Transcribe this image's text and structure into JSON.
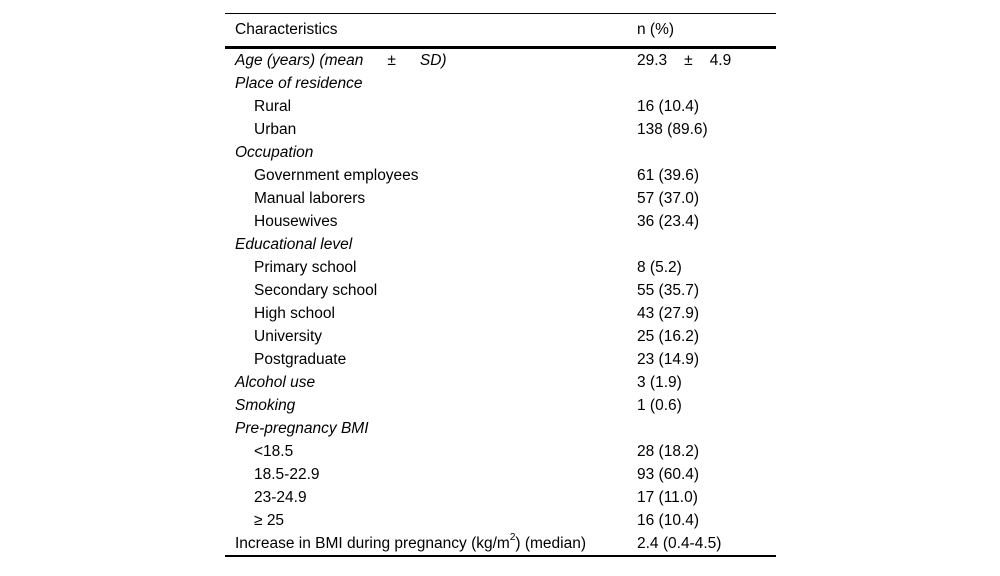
{
  "table": {
    "colors": {
      "text": "#000000",
      "rule": "#000000",
      "background": "#ffffff"
    },
    "columns": {
      "characteristics": "Characteristics",
      "n_percent": "n (%)"
    },
    "rows": [
      {
        "label_tabs": [
          "Age (years) (mean",
          "±",
          "SD)"
        ],
        "italic": true,
        "indent": false,
        "value_tabs": [
          "29.3",
          "±",
          "4.9"
        ]
      },
      {
        "label": "Place of residence",
        "italic": true,
        "indent": false,
        "value": ""
      },
      {
        "label": "Rural",
        "italic": false,
        "indent": true,
        "value": "16 (10.4)"
      },
      {
        "label": "Urban",
        "italic": false,
        "indent": true,
        "value": "138 (89.6)"
      },
      {
        "label": "Occupation",
        "italic": true,
        "indent": false,
        "value": ""
      },
      {
        "label": "Government employees",
        "italic": false,
        "indent": true,
        "value": "61 (39.6)"
      },
      {
        "label": "Manual laborers",
        "italic": false,
        "indent": true,
        "value": "57 (37.0)"
      },
      {
        "label": "Housewives",
        "italic": false,
        "indent": true,
        "value": "36 (23.4)"
      },
      {
        "label": "Educational level",
        "italic": true,
        "indent": false,
        "value": ""
      },
      {
        "label": "Primary school",
        "italic": false,
        "indent": true,
        "value": "8 (5.2)"
      },
      {
        "label": "Secondary school",
        "italic": false,
        "indent": true,
        "value": "55 (35.7)"
      },
      {
        "label": "High school",
        "italic": false,
        "indent": true,
        "value": "43 (27.9)"
      },
      {
        "label": "University",
        "italic": false,
        "indent": true,
        "value": "25 (16.2)"
      },
      {
        "label": "Postgraduate",
        "italic": false,
        "indent": true,
        "value": "23 (14.9)"
      },
      {
        "label": "Alcohol use",
        "italic": true,
        "indent": false,
        "value": "3 (1.9)"
      },
      {
        "label": "Smoking",
        "italic": true,
        "indent": false,
        "value": "1 (0.6)"
      },
      {
        "label": "Pre-pregnancy BMI",
        "italic": true,
        "indent": false,
        "value": ""
      },
      {
        "label": "<18.5",
        "italic": false,
        "indent": true,
        "value": "28 (18.2)"
      },
      {
        "label": "18.5-22.9",
        "italic": false,
        "indent": true,
        "value": "93 (60.4)"
      },
      {
        "label": "23-24.9",
        "italic": false,
        "indent": true,
        "value": "17 (11.0)"
      },
      {
        "label": "≥ 25",
        "italic": false,
        "indent": true,
        "value": "16 (10.4)"
      },
      {
        "label_pre": "Increase in BMI during pregnancy (kg/m",
        "label_sup": "2",
        "label_post": ") (median)",
        "italic": false,
        "indent": false,
        "value": "2.4 (0.4-4.5)"
      }
    ]
  }
}
